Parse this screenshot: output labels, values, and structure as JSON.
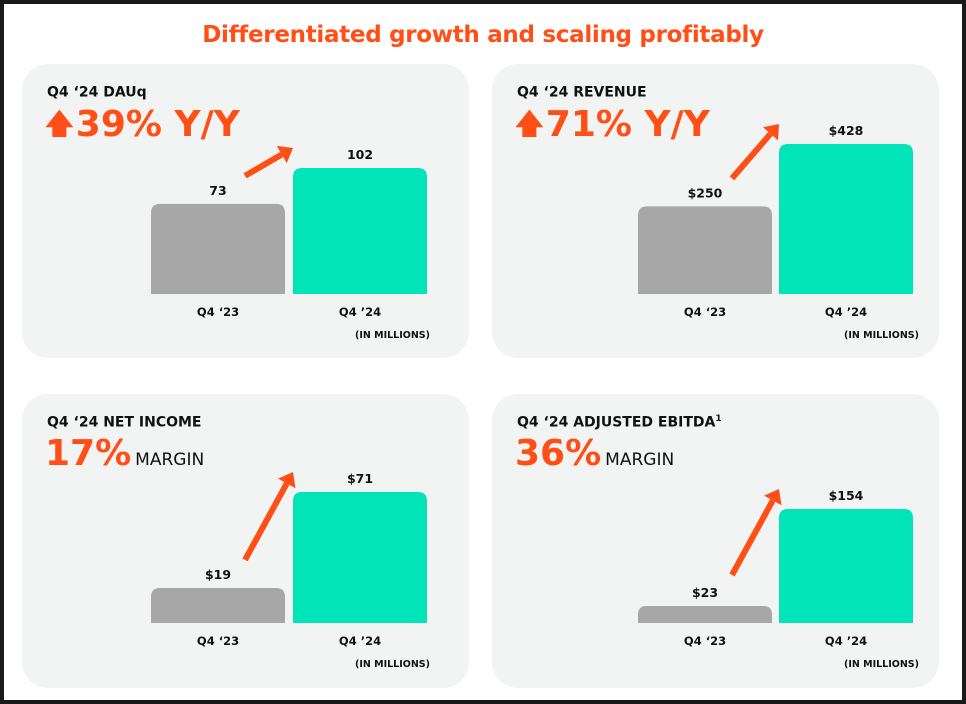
{
  "title": "Differentiated growth and scaling profitably",
  "panels": [
    {
      "heading": "Q4 ‘24 DAUq",
      "heading_sup": "",
      "headline_value": "39% Y/Y",
      "headline_unit": "",
      "headline_arrow": "up-arrow-icon"
    },
    {
      "heading": "Q4 ‘24 REVENUE",
      "heading_sup": "",
      "headline_value": "71% Y/Y",
      "headline_unit": "",
      "headline_arrow": "up-arrow-icon"
    },
    {
      "heading": "Q4 ‘24 NET INCOME",
      "heading_sup": "",
      "headline_value": "17%",
      "headline_unit": "MARGIN",
      "headline_arrow": ""
    },
    {
      "heading": "Q4 ‘24 ADJUSTED EBITDA",
      "heading_sup": "1",
      "headline_value": "36%",
      "headline_unit": "MARGIN",
      "headline_arrow": ""
    }
  ],
  "unit_note": "(IN MILLIONS)",
  "colors": {
    "accent": "#ff4f17",
    "prior": "#a7a7a7",
    "current": "#00e4b8",
    "card": "#f2f4f4"
  },
  "chart_data": [
    {
      "type": "bar",
      "categories": [
        "Q4 ‘23",
        "Q4 ’24"
      ],
      "values": [
        73,
        102
      ],
      "labels": [
        "73",
        "102"
      ],
      "unit": "(IN MILLIONS)"
    },
    {
      "type": "bar",
      "categories": [
        "Q4 ‘23",
        "Q4 ’24"
      ],
      "values": [
        250,
        428
      ],
      "labels": [
        "$250",
        "$428"
      ],
      "unit": "(IN MILLIONS)"
    },
    {
      "type": "bar",
      "categories": [
        "Q4 ‘23",
        "Q4 ’24"
      ],
      "values": [
        19,
        71
      ],
      "labels": [
        "$19",
        "$71"
      ],
      "unit": "(IN MILLIONS)"
    },
    {
      "type": "bar",
      "categories": [
        "Q4 ‘23",
        "Q4 ’24"
      ],
      "values": [
        23,
        154
      ],
      "labels": [
        "$23",
        "$154"
      ],
      "unit": "(IN MILLIONS)"
    }
  ]
}
